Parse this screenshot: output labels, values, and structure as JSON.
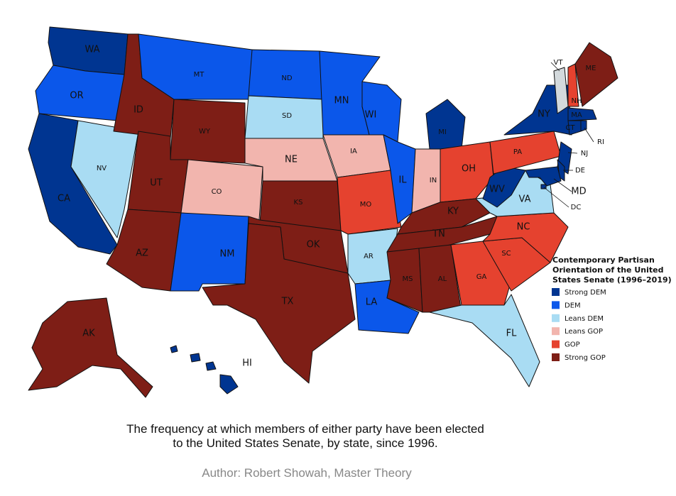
{
  "map": {
    "legend": {
      "title": [
        "Contemporary Partisan",
        "Orientation of the United",
        "States Senate (1996–2019)"
      ],
      "items": [
        {
          "label": "Strong DEM",
          "color": "#003591"
        },
        {
          "label": "DEM",
          "color": "#0b57ea"
        },
        {
          "label": "Leans DEM",
          "color": "#a9dcf3"
        },
        {
          "label": "Leans GOP",
          "color": "#f2b5ae"
        },
        {
          "label": "GOP",
          "color": "#e5422f"
        },
        {
          "label": "Strong GOP",
          "color": "#7e1e16"
        }
      ]
    },
    "other_color": "#d3d9dc",
    "states": [
      {
        "abbr": "WA",
        "category": 0
      },
      {
        "abbr": "OR",
        "category": 1
      },
      {
        "abbr": "CA",
        "category": 0
      },
      {
        "abbr": "NV",
        "category": 2
      },
      {
        "abbr": "ID",
        "category": 5
      },
      {
        "abbr": "MT",
        "category": 1
      },
      {
        "abbr": "WY",
        "category": 5
      },
      {
        "abbr": "UT",
        "category": 5
      },
      {
        "abbr": "AZ",
        "category": 5
      },
      {
        "abbr": "CO",
        "category": 3
      },
      {
        "abbr": "NM",
        "category": 1
      },
      {
        "abbr": "ND",
        "category": 1
      },
      {
        "abbr": "SD",
        "category": 2
      },
      {
        "abbr": "NE",
        "category": 3
      },
      {
        "abbr": "KS",
        "category": 5
      },
      {
        "abbr": "OK",
        "category": 5
      },
      {
        "abbr": "TX",
        "category": 5
      },
      {
        "abbr": "MN",
        "category": 1
      },
      {
        "abbr": "IA",
        "category": 3
      },
      {
        "abbr": "MO",
        "category": 4
      },
      {
        "abbr": "AR",
        "category": 2
      },
      {
        "abbr": "LA",
        "category": 1
      },
      {
        "abbr": "WI",
        "category": 1
      },
      {
        "abbr": "IL",
        "category": 1
      },
      {
        "abbr": "MI",
        "category": 0
      },
      {
        "abbr": "IN",
        "category": 3
      },
      {
        "abbr": "OH",
        "category": 4
      },
      {
        "abbr": "KY",
        "category": 5
      },
      {
        "abbr": "TN",
        "category": 5
      },
      {
        "abbr": "MS",
        "category": 5
      },
      {
        "abbr": "AL",
        "category": 5
      },
      {
        "abbr": "GA",
        "category": 4
      },
      {
        "abbr": "FL",
        "category": 2
      },
      {
        "abbr": "SC",
        "category": 4
      },
      {
        "abbr": "NC",
        "category": 4
      },
      {
        "abbr": "VA",
        "category": 2
      },
      {
        "abbr": "WV",
        "category": 0
      },
      {
        "abbr": "PA",
        "category": 4
      },
      {
        "abbr": "NY",
        "category": 0
      },
      {
        "abbr": "NJ",
        "category": 0
      },
      {
        "abbr": "DE",
        "category": 0
      },
      {
        "abbr": "MD",
        "category": 0
      },
      {
        "abbr": "DC",
        "category": 0
      },
      {
        "abbr": "VT",
        "category": null
      },
      {
        "abbr": "NH",
        "category": 4
      },
      {
        "abbr": "ME",
        "category": 5
      },
      {
        "abbr": "MA",
        "category": 0
      },
      {
        "abbr": "CT",
        "category": 0
      },
      {
        "abbr": "RI",
        "category": 0
      },
      {
        "abbr": "AK",
        "category": 5
      },
      {
        "abbr": "HI",
        "category": 0
      }
    ],
    "caption": [
      "The frequency at which members of either party have been elected",
      "to the United States Senate, by state, since 1996."
    ],
    "author": "Author: Robert Showah, Master Theory"
  }
}
